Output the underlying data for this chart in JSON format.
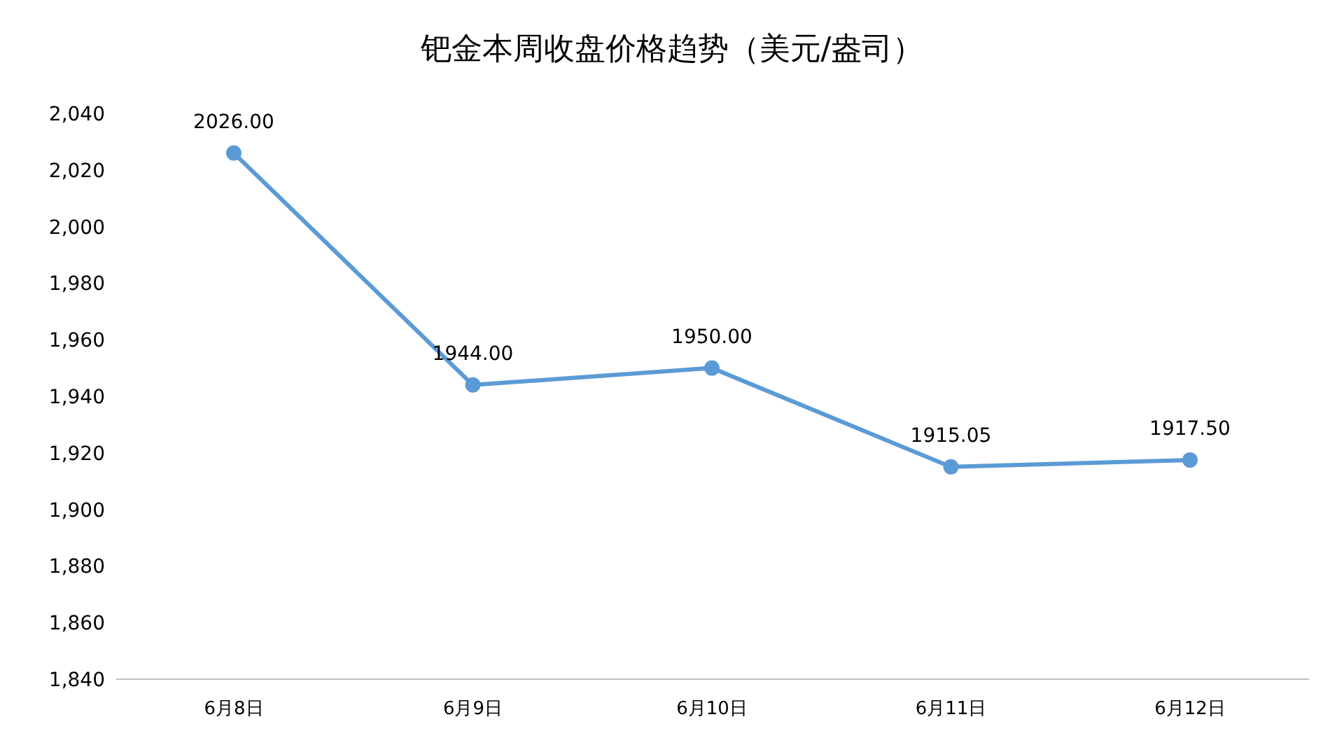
{
  "chart_data": {
    "type": "line",
    "title": "钯金本周收盘价格趋势（美元/盎司）",
    "categories": [
      "6月8日",
      "6月9日",
      "6月10日",
      "6月11日",
      "6月12日"
    ],
    "series": [
      {
        "color": "#5b9bd5",
        "values": [
          2026,
          1944,
          1950,
          1915.05,
          1917.5
        ],
        "value_labels": [
          "2026.00",
          "1944.00",
          "1950.00",
          "1915.05",
          "1917.50"
        ]
      }
    ],
    "ylim": [
      1840,
      2040
    ],
    "yticks": [
      {
        "value": 1840,
        "label": "1,840"
      },
      {
        "value": 1860,
        "label": "1,860"
      },
      {
        "value": 1880,
        "label": "1,880"
      },
      {
        "value": 1900,
        "label": "1,900"
      },
      {
        "value": 1920,
        "label": "1,920"
      },
      {
        "value": 1940,
        "label": "1,940"
      },
      {
        "value": 1960,
        "label": "1,960"
      },
      {
        "value": 1980,
        "label": "1,980"
      },
      {
        "value": 2000,
        "label": "2,000"
      },
      {
        "value": 2020,
        "label": "2,020"
      },
      {
        "value": 2040,
        "label": "2,040"
      }
    ],
    "grid": false,
    "legend": false,
    "marker": "circle",
    "line_style": "solid"
  }
}
